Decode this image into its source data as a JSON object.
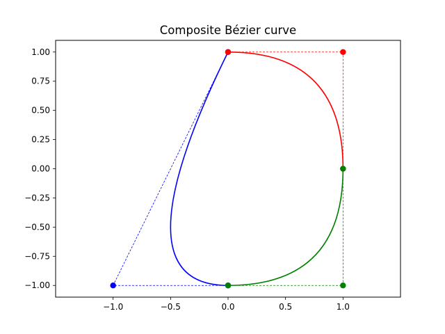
{
  "chart_data": {
    "type": "line",
    "title": "Composite Bézier curve",
    "xlabel": "",
    "ylabel": "",
    "xlim": [
      -1.5,
      1.5
    ],
    "ylim": [
      -1.1,
      1.1
    ],
    "grid": false,
    "xticks": [
      -1.0,
      -0.5,
      0.0,
      0.5,
      1.0
    ],
    "xtick_labels": [
      "−1.0",
      "−0.5",
      "0.0",
      "0.5",
      "1.0"
    ],
    "yticks": [
      1.0,
      0.75,
      0.5,
      0.25,
      0.0,
      -0.25,
      -0.5,
      -0.75,
      -1.0
    ],
    "ytick_labels": [
      "1.00",
      "0.75",
      "0.50",
      "0.25",
      "0.00",
      "−0.25",
      "−0.50",
      "−0.75",
      "−1.00"
    ],
    "segments": [
      {
        "color": "#0000ff",
        "control_points": [
          [
            0,
            -1
          ],
          [
            -1,
            -1
          ],
          [
            0,
            1
          ]
        ]
      },
      {
        "color": "#ff0000",
        "control_points": [
          [
            0,
            1
          ],
          [
            1,
            1
          ],
          [
            1,
            0
          ]
        ]
      },
      {
        "color": "#008000",
        "control_points": [
          [
            1,
            0
          ],
          [
            1,
            -1
          ],
          [
            0,
            -1
          ]
        ]
      }
    ]
  }
}
